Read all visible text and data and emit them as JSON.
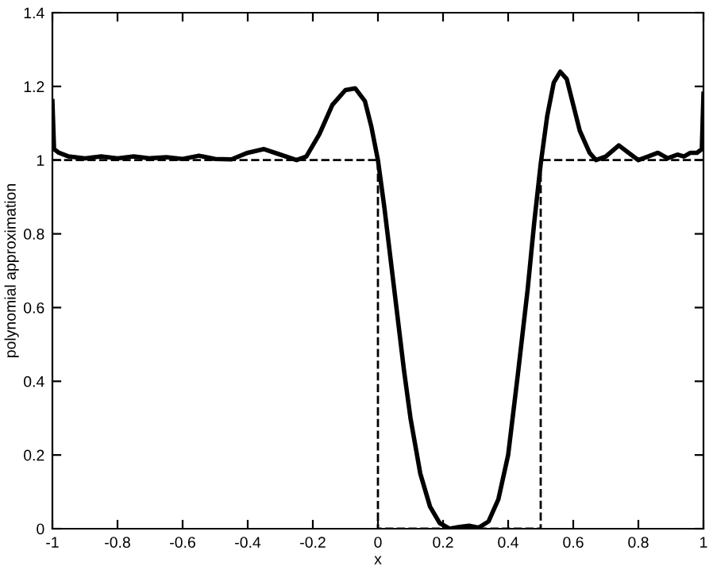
{
  "chart_data": {
    "type": "line",
    "xlabel": "x",
    "ylabel": "polynomial approximation",
    "xlim": [
      -1,
      1
    ],
    "ylim": [
      0,
      1.4
    ],
    "xticks": [
      -1,
      -0.8,
      -0.6,
      -0.4,
      -0.2,
      0,
      0.2,
      0.4,
      0.6,
      0.8,
      1
    ],
    "yticks": [
      0,
      0.2,
      0.4,
      0.6,
      0.8,
      1,
      1.2,
      1.4
    ],
    "grid": false,
    "legend": false,
    "series": [
      {
        "color": "#000000",
        "line_style": "solid",
        "x": [
          -1,
          -0.995,
          -0.98,
          -0.95,
          -0.9,
          -0.85,
          -0.8,
          -0.75,
          -0.7,
          -0.65,
          -0.6,
          -0.55,
          -0.5,
          -0.45,
          -0.4,
          -0.35,
          -0.3,
          -0.25,
          -0.22,
          -0.18,
          -0.14,
          -0.1,
          -0.07,
          -0.04,
          -0.02,
          0,
          0.02,
          0.05,
          0.08,
          0.1,
          0.13,
          0.16,
          0.19,
          0.22,
          0.25,
          0.28,
          0.31,
          0.34,
          0.37,
          0.4,
          0.43,
          0.46,
          0.48,
          0.5,
          0.52,
          0.54,
          0.56,
          0.58,
          0.6,
          0.62,
          0.65,
          0.67,
          0.7,
          0.74,
          0.77,
          0.8,
          0.83,
          0.86,
          0.89,
          0.92,
          0.94,
          0.96,
          0.98,
          0.995,
          1
        ],
        "values": [
          1.16,
          1.03,
          1.02,
          1.01,
          1.005,
          1.01,
          1.005,
          1.01,
          1.005,
          1.008,
          1.003,
          1.012,
          1.003,
          1.002,
          1.02,
          1.03,
          1.015,
          1.0,
          1.01,
          1.07,
          1.15,
          1.19,
          1.195,
          1.16,
          1.09,
          1.0,
          0.87,
          0.65,
          0.43,
          0.3,
          0.15,
          0.06,
          0.015,
          0.0,
          0.005,
          0.008,
          0.003,
          0.02,
          0.08,
          0.2,
          0.42,
          0.65,
          0.83,
          0.99,
          1.12,
          1.21,
          1.24,
          1.22,
          1.15,
          1.08,
          1.02,
          1.0,
          1.01,
          1.04,
          1.02,
          1.0,
          1.01,
          1.02,
          1.005,
          1.015,
          1.01,
          1.02,
          1.02,
          1.03,
          1.18
        ]
      },
      {
        "color": "#000000",
        "line_style": "dashed",
        "x": [
          -1,
          0,
          0,
          0.5,
          0.5,
          1
        ],
        "values": [
          1,
          1,
          0,
          0,
          1,
          1
        ]
      }
    ]
  }
}
